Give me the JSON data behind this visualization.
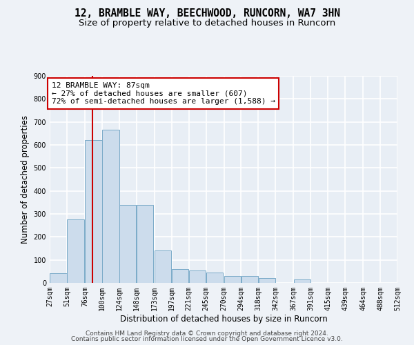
{
  "title1": "12, BRAMBLE WAY, BEECHWOOD, RUNCORN, WA7 3HN",
  "title2": "Size of property relative to detached houses in Runcorn",
  "xlabel": "Distribution of detached houses by size in Runcorn",
  "ylabel": "Number of detached properties",
  "bar_color": "#ccdcec",
  "bar_edge_color": "#7aaac8",
  "vline_color": "#cc0000",
  "vline_x": 87,
  "annotation_line1": "12 BRAMBLE WAY: 87sqm",
  "annotation_line2": "← 27% of detached houses are smaller (607)",
  "annotation_line3": "72% of semi-detached houses are larger (1,588) →",
  "bins": [
    27,
    51,
    76,
    100,
    124,
    148,
    173,
    197,
    221,
    245,
    270,
    294,
    318,
    342,
    367,
    391,
    415,
    439,
    464,
    488,
    512
  ],
  "counts": [
    42,
    275,
    620,
    665,
    340,
    340,
    140,
    60,
    55,
    45,
    30,
    30,
    20,
    0,
    15,
    0,
    0,
    0,
    0,
    0
  ],
  "ylim": [
    0,
    900
  ],
  "yticks": [
    0,
    100,
    200,
    300,
    400,
    500,
    600,
    700,
    800,
    900
  ],
  "background_color": "#eef2f7",
  "plot_bg_color": "#e8eef5",
  "grid_color": "#ffffff",
  "footer1": "Contains HM Land Registry data © Crown copyright and database right 2024.",
  "footer2": "Contains public sector information licensed under the Open Government Licence v3.0.",
  "title_fontsize": 10.5,
  "subtitle_fontsize": 9.5,
  "axis_label_fontsize": 8.5,
  "tick_fontsize": 7,
  "annotation_fontsize": 8,
  "footer_fontsize": 6.5
}
